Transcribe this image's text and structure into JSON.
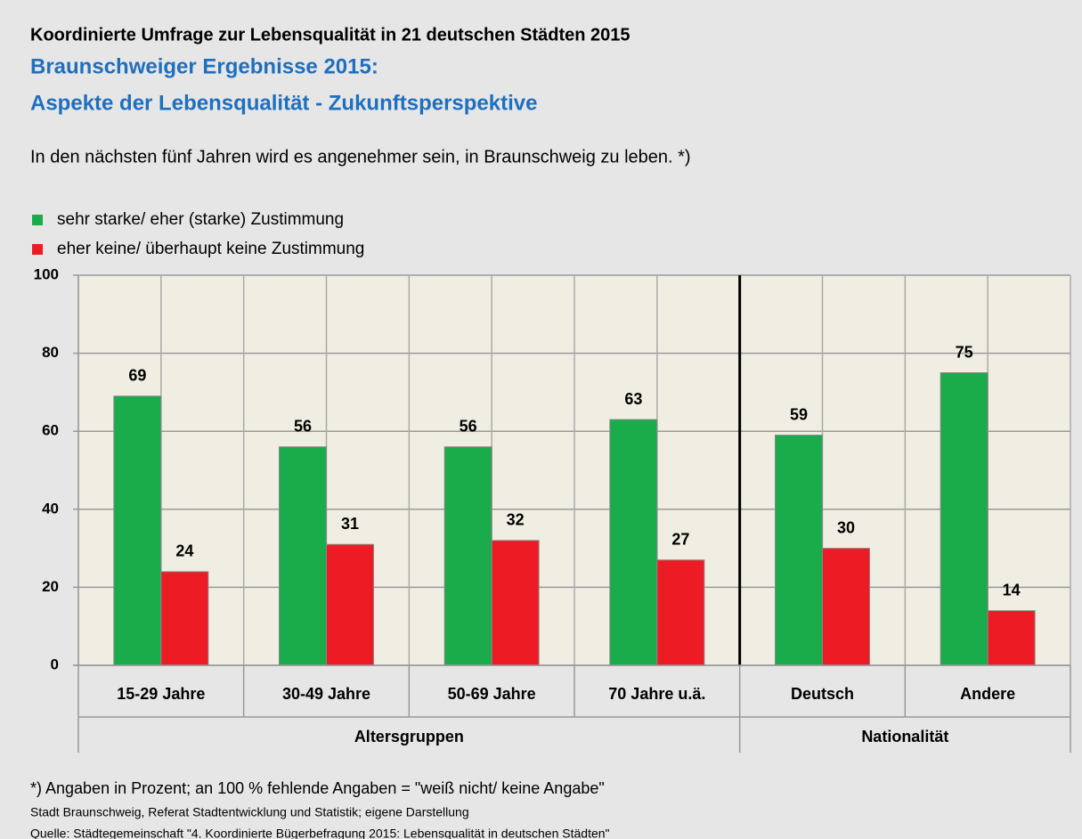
{
  "chart_data": {
    "type": "bar",
    "title": "Koordinierte Umfrage zur Lebensqualität in 21 deutschen Städten 2015",
    "subtitle": [
      "Braunschweiger Ergebnisse 2015:",
      "Aspekte der Lebensqualität - Zukunftsperspektive"
    ],
    "question": "In den nächsten fünf Jahren wird es angenehmer sein, in Braunschweig zu leben. *)",
    "categories": [
      "15-29 Jahre",
      "30-49 Jahre",
      "50-69 Jahre",
      "70 Jahre u.ä.",
      "Deutsch",
      "Andere"
    ],
    "groups": [
      {
        "name": "Altersgruppen",
        "members": [
          "15-29 Jahre",
          "30-49 Jahre",
          "50-69 Jahre",
          "70 Jahre u.ä."
        ]
      },
      {
        "name": "Nationalität",
        "members": [
          "Deutsch",
          "Andere"
        ]
      }
    ],
    "series": [
      {
        "name": "sehr starke/ eher (starke) Zustimmung",
        "color": "#1aab4b",
        "values": [
          69,
          56,
          56,
          63,
          59,
          75
        ]
      },
      {
        "name": "eher keine/ überhaupt keine Zustimmung",
        "color": "#ed1c24",
        "values": [
          24,
          31,
          32,
          27,
          30,
          14
        ]
      }
    ],
    "ylim": [
      0,
      100
    ],
    "yticks": [
      0,
      20,
      40,
      60,
      80,
      100
    ],
    "grid": true,
    "footnotes": [
      "*) Angaben in Prozent; an 100 % fehlende Angaben = \"weiß nicht/ keine Angabe\"",
      "Stadt Braunschweig, Referat Stadtentwicklung und Statistik; eigene Darstellung",
      "Quelle: Städtegemeinschaft \"4. Koordinierte Bügerbefragung 2015: Lebensqualität in deutschen Städten\""
    ]
  }
}
